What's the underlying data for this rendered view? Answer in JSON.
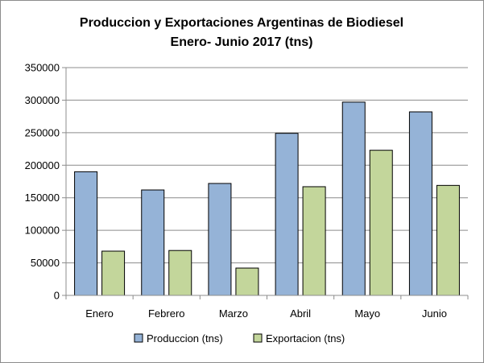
{
  "chart_data": {
    "type": "bar",
    "title_lines": [
      "Produccion y Exportaciones Argentinas de Biodiesel",
      "Enero- Junio 2017 (tns)"
    ],
    "categories": [
      "Enero",
      "Febrero",
      "Marzo",
      "Abril",
      "Mayo",
      "Junio"
    ],
    "series": [
      {
        "name": "Produccion (tns)",
        "values": [
          190000,
          162000,
          172000,
          249000,
          297000,
          282000
        ],
        "color": "#95b3d7"
      },
      {
        "name": "Exportacion (tns)",
        "values": [
          68000,
          69000,
          42000,
          167000,
          223000,
          169000
        ],
        "color": "#c3d69b"
      }
    ],
    "y_ticks": [
      "0",
      "50000",
      "100000",
      "150000",
      "200000",
      "250000",
      "300000",
      "350000"
    ],
    "ylim": [
      0,
      350000
    ],
    "grid": true,
    "legend_position": "bottom",
    "xlabel": "",
    "ylabel": ""
  }
}
